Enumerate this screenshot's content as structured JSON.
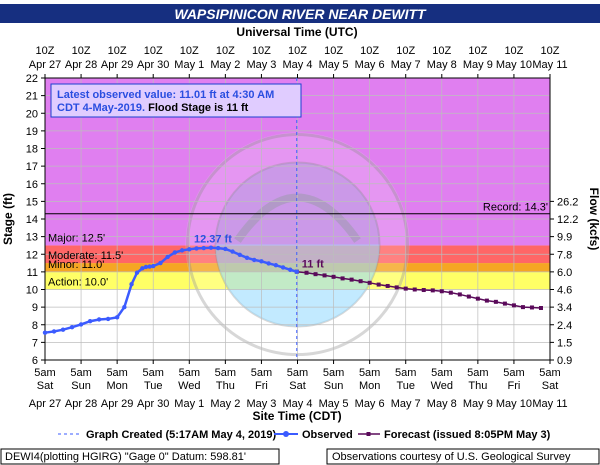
{
  "chart_data": {
    "type": "line",
    "title": "WAPSIPINICON RIVER NEAR DEWITT",
    "top_axis_title": "Universal Time (UTC)",
    "top_axis_ticks": [
      [
        "10Z",
        "Apr 27"
      ],
      [
        "10Z",
        "Apr 28"
      ],
      [
        "10Z",
        "Apr 29"
      ],
      [
        "10Z",
        "Apr 30"
      ],
      [
        "10Z",
        "May 1"
      ],
      [
        "10Z",
        "May 2"
      ],
      [
        "10Z",
        "May 3"
      ],
      [
        "10Z",
        "May 4"
      ],
      [
        "10Z",
        "May 5"
      ],
      [
        "10Z",
        "May 6"
      ],
      [
        "10Z",
        "May 7"
      ],
      [
        "10Z",
        "May 8"
      ],
      [
        "10Z",
        "May 9"
      ],
      [
        "10Z",
        "May 10"
      ],
      [
        "10Z",
        "May 11"
      ]
    ],
    "bottom_axis_title": "Site Time (CDT)",
    "bottom_axis_ticks": [
      [
        "5am",
        "Sat",
        "Apr 27"
      ],
      [
        "5am",
        "Sun",
        "Apr 28"
      ],
      [
        "5am",
        "Mon",
        "Apr 29"
      ],
      [
        "5am",
        "Tue",
        "Apr 30"
      ],
      [
        "5am",
        "Wed",
        "May 1"
      ],
      [
        "5am",
        "Thu",
        "May 2"
      ],
      [
        "5am",
        "Fri",
        "May 3"
      ],
      [
        "5am",
        "Sat",
        "May 4"
      ],
      [
        "5am",
        "Sun",
        "May 5"
      ],
      [
        "5am",
        "Mon",
        "May 6"
      ],
      [
        "5am",
        "Tue",
        "May 7"
      ],
      [
        "5am",
        "Wed",
        "May 8"
      ],
      [
        "5am",
        "Thu",
        "May 9"
      ],
      [
        "5am",
        "Fri",
        "May 10"
      ],
      [
        "5am",
        "Sat",
        "May 11"
      ]
    ],
    "ylabel": "Stage (ft)",
    "ylabel_right": "Flow (kcfs)",
    "ylim": [
      6,
      22
    ],
    "y_ticks": [
      6,
      7,
      8,
      9,
      10,
      11,
      12,
      13,
      14,
      15,
      16,
      17,
      18,
      19,
      20,
      21,
      22
    ],
    "flow_ticks": [
      {
        "stage": 6,
        "label": "0.9"
      },
      {
        "stage": 7,
        "label": "1.5"
      },
      {
        "stage": 8,
        "label": "2.4"
      },
      {
        "stage": 9,
        "label": "3.4"
      },
      {
        "stage": 10,
        "label": "4.6"
      },
      {
        "stage": 11,
        "label": "6.0"
      },
      {
        "stage": 12,
        "label": "7.8"
      },
      {
        "stage": 13,
        "label": "9.9"
      },
      {
        "stage": 14,
        "label": "12.2"
      },
      {
        "stage": 15,
        "label": "26.2"
      }
    ],
    "x_unit": "days from 5am CDT Apr 27",
    "zones": [
      {
        "name": "Action: 10.0'",
        "from": 10.0,
        "to": 11.0,
        "color": "#ffff66"
      },
      {
        "name": "Minor: 11.0'",
        "from": 11.0,
        "to": 11.5,
        "color": "#f5a623"
      },
      {
        "name": "Moderate: 11.5'",
        "from": 11.5,
        "to": 12.5,
        "color": "#ff6666"
      },
      {
        "name": "Major: 12.5'",
        "from": 12.5,
        "to": 22,
        "color": "#e07ff0"
      }
    ],
    "record": {
      "label": "Record: 14.3'",
      "value": 14.3
    },
    "series": [
      {
        "name": "Observed",
        "color": "#3b5bff",
        "x": [
          0,
          0.25,
          0.5,
          0.75,
          1.0,
          1.25,
          1.5,
          1.75,
          2.0,
          2.2,
          2.4,
          2.55,
          2.7,
          2.8,
          2.9,
          3.0,
          3.2,
          3.4,
          3.6,
          3.8,
          4.0,
          4.2,
          4.4,
          4.6,
          4.8,
          5.0,
          5.2,
          5.4,
          5.6,
          5.8,
          6.0,
          6.2,
          6.4,
          6.6,
          6.8,
          6.98
        ],
        "y": [
          7.55,
          7.62,
          7.72,
          7.86,
          8.02,
          8.2,
          8.3,
          8.33,
          8.42,
          9.0,
          10.3,
          10.95,
          11.2,
          11.28,
          11.3,
          11.33,
          11.5,
          11.85,
          12.1,
          12.22,
          12.28,
          12.33,
          12.35,
          12.37,
          12.35,
          12.3,
          12.15,
          11.97,
          11.8,
          11.68,
          11.6,
          11.48,
          11.38,
          11.25,
          11.12,
          11.01
        ]
      },
      {
        "name": "Forecast (issued 8:05PM May 3)",
        "color": "#5a0a5a",
        "x": [
          6.98,
          7.25,
          7.5,
          7.75,
          8.0,
          8.25,
          8.5,
          8.75,
          9.0,
          9.25,
          9.5,
          9.75,
          10.0,
          10.25,
          10.5,
          10.75,
          11.0,
          11.25,
          11.5,
          11.75,
          12.0,
          12.25,
          12.5,
          12.75,
          13.0,
          13.25,
          13.5,
          13.75
        ],
        "y": [
          11.01,
          10.95,
          10.87,
          10.8,
          10.72,
          10.63,
          10.56,
          10.47,
          10.38,
          10.28,
          10.2,
          10.12,
          10.05,
          10.0,
          9.97,
          9.95,
          9.9,
          9.82,
          9.72,
          9.6,
          9.48,
          9.37,
          9.3,
          9.2,
          9.1,
          9.0,
          8.98,
          8.95
        ]
      }
    ],
    "annotations": {
      "latest_line1": "Latest observed value: 11.01 ft at 4:30 AM",
      "latest_line2_a": "CDT 4-May-2019.",
      "latest_line2_b": " Flood Stage is 11 ft",
      "peak_label": "12.37 ft",
      "peak": {
        "x": 4.6,
        "y": 12.37
      },
      "current_label": "11 ft",
      "current": {
        "x": 6.98,
        "y": 11.01
      }
    },
    "created_x": 6.98,
    "legend": {
      "created": "Graph Created (5:17AM May 4, 2019)",
      "observed": "Observed",
      "forecast": "Forecast (issued 8:05PM May 3)"
    },
    "footer_left": "DEWI4(plotting HGIRG) \"Gage 0\" Datum:  598.81'",
    "footer_right": "Observations courtesy of U.S. Geological Survey",
    "watermark": "NATIONAL OCEANIC AND ATMOSPHERIC ADMINISTRATION U.S. DEPARTMENT OF COMMERCE NOAA"
  },
  "colors": {
    "title_bar": "#162f80",
    "title_text": "#ffffff",
    "action": "#ffff66",
    "minor": "#f5a623",
    "moderate": "#ff6666",
    "major": "#e07ff0",
    "below": "#ffffff",
    "grid": "#bdbdbd",
    "observed": "#3b5bff",
    "forecast": "#5a0a5a",
    "annotation_blue": "#2a4ee0"
  }
}
